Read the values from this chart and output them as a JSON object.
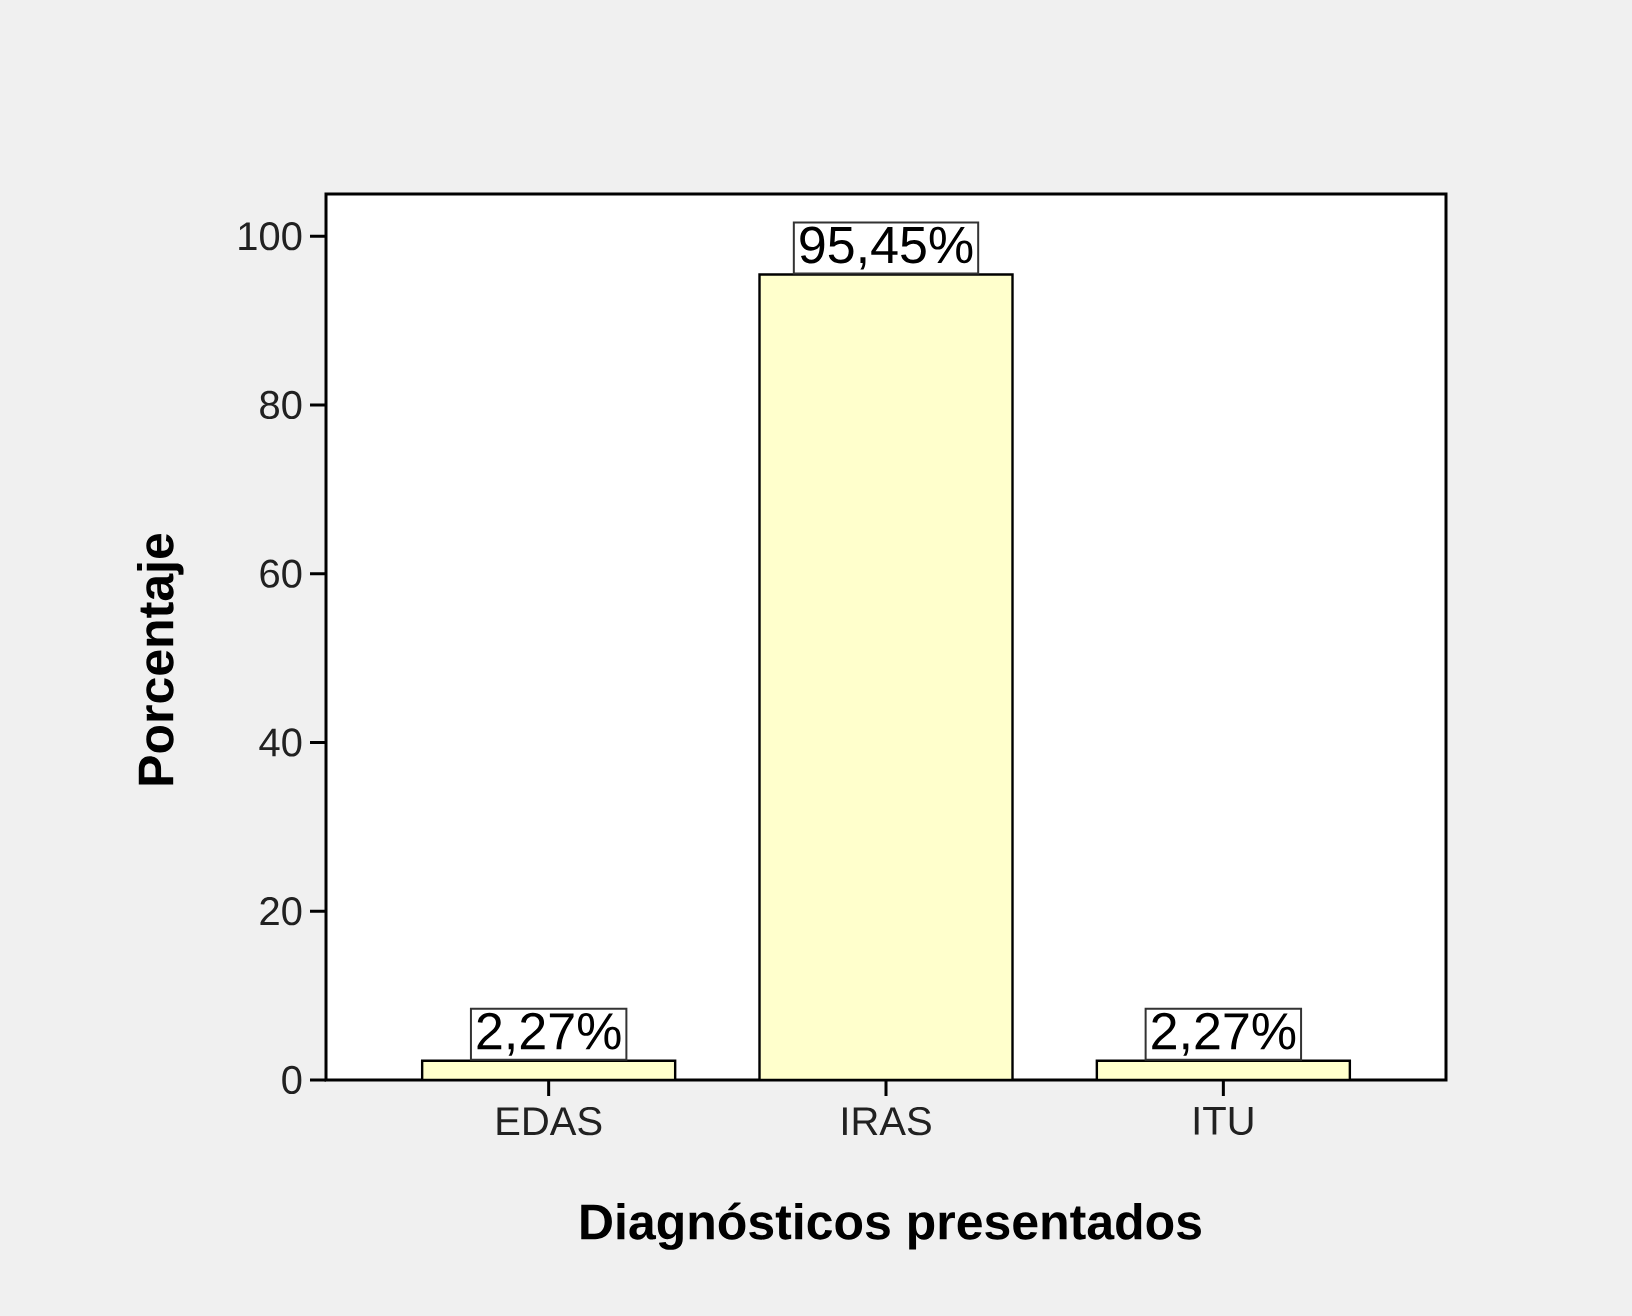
{
  "chart_data": {
    "type": "bar",
    "xlabel": "Diagnósticos presentados",
    "ylabel": "Porcentaje",
    "categories": [
      "EDAS",
      "IRAS",
      "ITU"
    ],
    "values": [
      2.27,
      95.45,
      2.27
    ],
    "value_labels": [
      "2,27%",
      "95,45%",
      "2,27%"
    ],
    "color": "#ffffcc",
    "ylim": [
      0,
      105
    ],
    "yticks": [
      0,
      20,
      40,
      60,
      80,
      100
    ]
  }
}
